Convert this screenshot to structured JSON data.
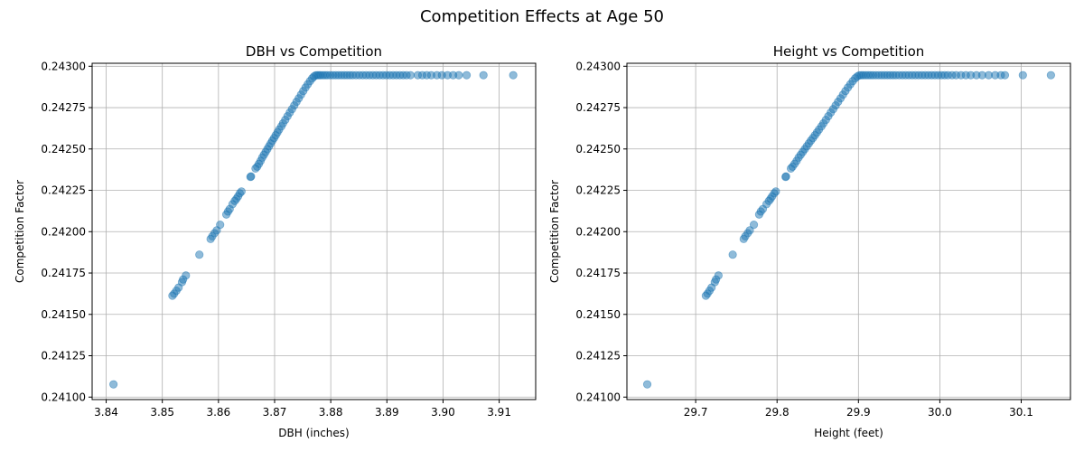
{
  "figure": {
    "suptitle": "Competition Effects at Age 50"
  },
  "colors": {
    "point": "#1f77b4",
    "grid": "#b0b0b0",
    "axes": "#000000"
  },
  "chart_data": [
    {
      "type": "scatter",
      "title": "DBH vs Competition",
      "xlabel": "DBH (inches)",
      "ylabel": "Competition Factor",
      "xlim": [
        3.8375,
        3.9165
      ],
      "ylim": [
        0.240985,
        0.243018
      ],
      "xticks": [
        3.84,
        3.85,
        3.86,
        3.87,
        3.88,
        3.89,
        3.9,
        3.91
      ],
      "xtick_labels": [
        "3.84",
        "3.85",
        "3.86",
        "3.87",
        "3.88",
        "3.89",
        "3.90",
        "3.91"
      ],
      "yticks": [
        0.241,
        0.24125,
        0.2415,
        0.24175,
        0.242,
        0.24225,
        0.2425,
        0.24275,
        0.243
      ],
      "ytick_labels": [
        "0.24100",
        "0.24125",
        "0.24150",
        "0.24175",
        "0.24200",
        "0.24225",
        "0.24250",
        "0.24275",
        "0.24300"
      ],
      "grid": true,
      "marker_alpha": 0.5,
      "points": [
        [
          3.8413,
          0.241077
        ],
        [
          3.8518,
          0.241613
        ],
        [
          3.8521,
          0.241625
        ],
        [
          3.8525,
          0.241643
        ],
        [
          3.8529,
          0.241662
        ],
        [
          3.8535,
          0.241695
        ],
        [
          3.8537,
          0.241711
        ],
        [
          3.8542,
          0.241735
        ],
        [
          3.8566,
          0.241861
        ],
        [
          3.8586,
          0.241956
        ],
        [
          3.8589,
          0.241972
        ],
        [
          3.8593,
          0.241991
        ],
        [
          3.8597,
          0.242008
        ],
        [
          3.8603,
          0.242042
        ],
        [
          3.8614,
          0.242104
        ],
        [
          3.8617,
          0.242122
        ],
        [
          3.862,
          0.242137
        ],
        [
          3.8625,
          0.242166
        ],
        [
          3.8629,
          0.242186
        ],
        [
          3.8632,
          0.242199
        ],
        [
          3.8635,
          0.242214
        ],
        [
          3.8638,
          0.242232
        ],
        [
          3.8641,
          0.242243
        ],
        [
          3.8657,
          0.242331
        ],
        [
          3.8658,
          0.242334
        ],
        [
          3.8666,
          0.242382
        ],
        [
          3.8669,
          0.242393
        ],
        [
          3.8672,
          0.24241
        ],
        [
          3.8675,
          0.242428
        ],
        [
          3.8678,
          0.242448
        ],
        [
          3.8681,
          0.242465
        ],
        [
          3.8684,
          0.242482
        ],
        [
          3.8687,
          0.242499
        ],
        [
          3.869,
          0.242516
        ],
        [
          3.8693,
          0.242533
        ],
        [
          3.8696,
          0.24255
        ],
        [
          3.8699,
          0.242566
        ],
        [
          3.8702,
          0.242583
        ],
        [
          3.8705,
          0.2426
        ],
        [
          3.8708,
          0.242617
        ],
        [
          3.8712,
          0.242637
        ],
        [
          3.8715,
          0.242655
        ],
        [
          3.8719,
          0.242676
        ],
        [
          3.8723,
          0.242698
        ],
        [
          3.8727,
          0.24272
        ],
        [
          3.8731,
          0.242741
        ],
        [
          3.8735,
          0.242763
        ],
        [
          3.8739,
          0.242785
        ],
        [
          3.8743,
          0.242806
        ],
        [
          3.8747,
          0.242828
        ],
        [
          3.8751,
          0.24285
        ],
        [
          3.8755,
          0.242871
        ],
        [
          3.8759,
          0.242891
        ],
        [
          3.8763,
          0.24291
        ],
        [
          3.8767,
          0.242927
        ],
        [
          3.877,
          0.242938
        ],
        [
          3.8773,
          0.242945
        ],
        [
          3.8776,
          0.242946
        ],
        [
          3.8779,
          0.242946
        ],
        [
          3.8782,
          0.242946
        ],
        [
          3.8786,
          0.242946
        ],
        [
          3.879,
          0.242946
        ],
        [
          3.8794,
          0.242946
        ],
        [
          3.8799,
          0.242946
        ],
        [
          3.8804,
          0.242946
        ],
        [
          3.8809,
          0.242946
        ],
        [
          3.8814,
          0.242946
        ],
        [
          3.8819,
          0.242946
        ],
        [
          3.8824,
          0.242946
        ],
        [
          3.8829,
          0.242946
        ],
        [
          3.8834,
          0.242946
        ],
        [
          3.8839,
          0.242946
        ],
        [
          3.8845,
          0.242946
        ],
        [
          3.8851,
          0.242946
        ],
        [
          3.8857,
          0.242946
        ],
        [
          3.8863,
          0.242946
        ],
        [
          3.8869,
          0.242946
        ],
        [
          3.8875,
          0.242946
        ],
        [
          3.8881,
          0.242946
        ],
        [
          3.8887,
          0.242946
        ],
        [
          3.8893,
          0.242946
        ],
        [
          3.8899,
          0.242946
        ],
        [
          3.8905,
          0.242946
        ],
        [
          3.8911,
          0.242946
        ],
        [
          3.8917,
          0.242946
        ],
        [
          3.8923,
          0.242946
        ],
        [
          3.8929,
          0.242946
        ],
        [
          3.8935,
          0.242946
        ],
        [
          3.8942,
          0.242946
        ],
        [
          3.8955,
          0.242946
        ],
        [
          3.8963,
          0.242946
        ],
        [
          3.8971,
          0.242946
        ],
        [
          3.8979,
          0.242946
        ],
        [
          3.8989,
          0.242946
        ],
        [
          3.8998,
          0.242946
        ],
        [
          3.9008,
          0.242946
        ],
        [
          3.9018,
          0.242946
        ],
        [
          3.9028,
          0.242946
        ],
        [
          3.9042,
          0.242946
        ],
        [
          3.9072,
          0.242946
        ],
        [
          3.9125,
          0.242946
        ]
      ]
    },
    {
      "type": "scatter",
      "title": "Height vs Competition",
      "xlabel": "Height (feet)",
      "ylabel": "Competition Factor",
      "xlim": [
        29.6155,
        30.1605
      ],
      "ylim": [
        0.240985,
        0.243018
      ],
      "xticks": [
        29.7,
        29.8,
        29.9,
        30.0,
        30.1
      ],
      "xtick_labels": [
        "29.7",
        "29.8",
        "29.9",
        "30.0",
        "30.1"
      ],
      "yticks": [
        0.241,
        0.24125,
        0.2415,
        0.24175,
        0.242,
        0.24225,
        0.2425,
        0.24275,
        0.243
      ],
      "ytick_labels": [
        "0.24100",
        "0.24125",
        "0.24150",
        "0.24175",
        "0.24200",
        "0.24225",
        "0.24250",
        "0.24275",
        "0.24300"
      ],
      "grid": true,
      "marker_alpha": 0.5,
      "points": [
        [
          29.6405,
          0.241077
        ],
        [
          29.7125,
          0.241613
        ],
        [
          29.7145,
          0.241625
        ],
        [
          29.717,
          0.241643
        ],
        [
          29.7195,
          0.241662
        ],
        [
          29.7235,
          0.241695
        ],
        [
          29.725,
          0.241711
        ],
        [
          29.728,
          0.241735
        ],
        [
          29.7455,
          0.241861
        ],
        [
          29.759,
          0.241956
        ],
        [
          29.761,
          0.241972
        ],
        [
          29.764,
          0.241991
        ],
        [
          29.7665,
          0.242008
        ],
        [
          29.7715,
          0.242042
        ],
        [
          29.778,
          0.242104
        ],
        [
          29.78,
          0.242122
        ],
        [
          29.7825,
          0.242137
        ],
        [
          29.787,
          0.242166
        ],
        [
          29.79,
          0.242186
        ],
        [
          29.792,
          0.242199
        ],
        [
          29.794,
          0.242214
        ],
        [
          29.7965,
          0.242232
        ],
        [
          29.7985,
          0.242243
        ],
        [
          29.8105,
          0.242331
        ],
        [
          29.811,
          0.242334
        ],
        [
          29.817,
          0.242382
        ],
        [
          29.819,
          0.242393
        ],
        [
          29.8215,
          0.24241
        ],
        [
          29.824,
          0.242428
        ],
        [
          29.8265,
          0.242448
        ],
        [
          29.829,
          0.242465
        ],
        [
          29.8315,
          0.242482
        ],
        [
          29.834,
          0.242499
        ],
        [
          29.8365,
          0.242516
        ],
        [
          29.839,
          0.242533
        ],
        [
          29.8415,
          0.24255
        ],
        [
          29.844,
          0.242566
        ],
        [
          29.8465,
          0.242583
        ],
        [
          29.849,
          0.2426
        ],
        [
          29.8515,
          0.242617
        ],
        [
          29.8545,
          0.242637
        ],
        [
          29.857,
          0.242655
        ],
        [
          29.86,
          0.242676
        ],
        [
          29.863,
          0.242698
        ],
        [
          29.866,
          0.24272
        ],
        [
          29.869,
          0.242741
        ],
        [
          29.872,
          0.242763
        ],
        [
          29.875,
          0.242785
        ],
        [
          29.878,
          0.242806
        ],
        [
          29.881,
          0.242828
        ],
        [
          29.884,
          0.24285
        ],
        [
          29.887,
          0.242871
        ],
        [
          29.89,
          0.242891
        ],
        [
          29.893,
          0.24291
        ],
        [
          29.896,
          0.242927
        ],
        [
          29.8985,
          0.242938
        ],
        [
          29.901,
          0.242945
        ],
        [
          29.9035,
          0.242946
        ],
        [
          29.906,
          0.242946
        ],
        [
          29.909,
          0.242946
        ],
        [
          29.912,
          0.242946
        ],
        [
          29.915,
          0.242946
        ],
        [
          29.918,
          0.242946
        ],
        [
          29.9215,
          0.242946
        ],
        [
          29.925,
          0.242946
        ],
        [
          29.9285,
          0.242946
        ],
        [
          29.932,
          0.242946
        ],
        [
          29.9355,
          0.242946
        ],
        [
          29.939,
          0.242946
        ],
        [
          29.9425,
          0.242946
        ],
        [
          29.946,
          0.242946
        ],
        [
          29.95,
          0.242946
        ],
        [
          29.954,
          0.242946
        ],
        [
          29.958,
          0.242946
        ],
        [
          29.962,
          0.242946
        ],
        [
          29.966,
          0.242946
        ],
        [
          29.97,
          0.242946
        ],
        [
          29.974,
          0.242946
        ],
        [
          29.978,
          0.242946
        ],
        [
          29.982,
          0.242946
        ],
        [
          29.986,
          0.242946
        ],
        [
          29.99,
          0.242946
        ],
        [
          29.994,
          0.242946
        ],
        [
          29.998,
          0.242946
        ],
        [
          30.002,
          0.242946
        ],
        [
          30.006,
          0.242946
        ],
        [
          30.01,
          0.242946
        ],
        [
          30.015,
          0.242946
        ],
        [
          30.02,
          0.242946
        ],
        [
          30.026,
          0.242946
        ],
        [
          30.032,
          0.242946
        ],
        [
          30.038,
          0.242946
        ],
        [
          30.045,
          0.242946
        ],
        [
          30.052,
          0.242946
        ],
        [
          30.06,
          0.242946
        ],
        [
          30.068,
          0.242946
        ],
        [
          30.075,
          0.242946
        ],
        [
          30.08,
          0.242946
        ],
        [
          30.102,
          0.242946
        ],
        [
          30.1365,
          0.242946
        ]
      ]
    }
  ]
}
